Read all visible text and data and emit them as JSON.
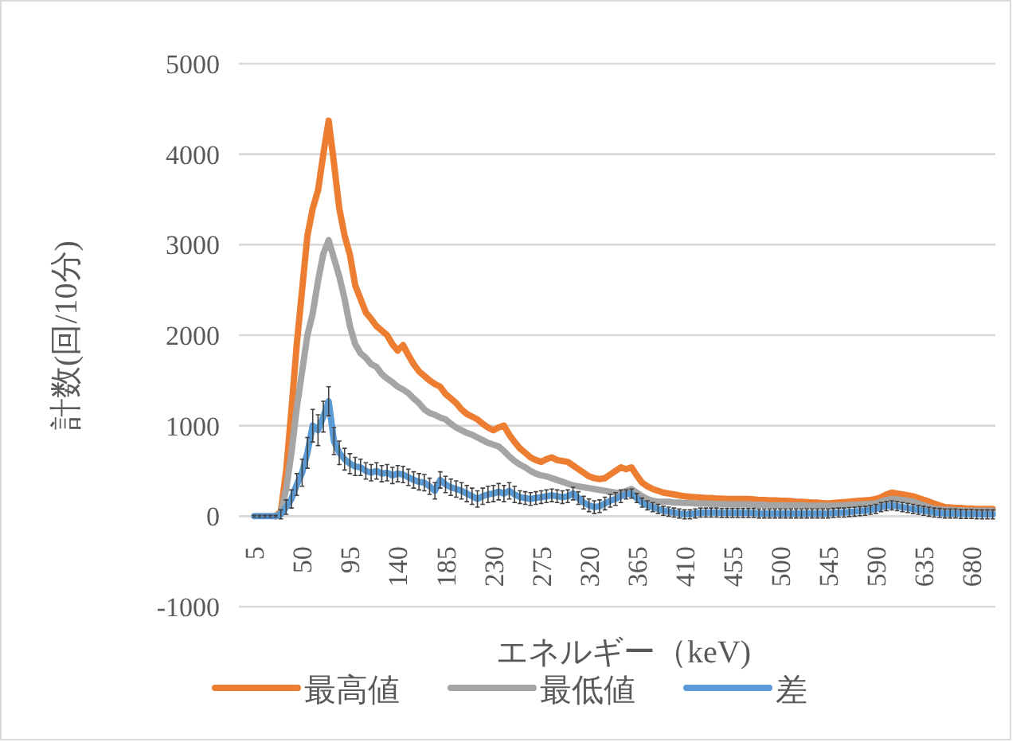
{
  "chart_data": {
    "type": "line",
    "xlabel": "エネルギー（keV)",
    "ylabel": "計数(回/10分)",
    "categories": [
      "5",
      null,
      null,
      null,
      null,
      null,
      null,
      null,
      null,
      "50",
      null,
      null,
      null,
      null,
      null,
      null,
      null,
      null,
      "95",
      null,
      null,
      null,
      null,
      null,
      null,
      null,
      null,
      "140",
      null,
      null,
      null,
      null,
      null,
      null,
      null,
      null,
      "185",
      null,
      null,
      null,
      null,
      null,
      null,
      null,
      null,
      "230",
      null,
      null,
      null,
      null,
      null,
      null,
      null,
      null,
      "275",
      null,
      null,
      null,
      null,
      null,
      null,
      null,
      null,
      "320",
      null,
      null,
      null,
      null,
      null,
      null,
      null,
      null,
      "365",
      null,
      null,
      null,
      null,
      null,
      null,
      null,
      null,
      "410",
      null,
      null,
      null,
      null,
      null,
      null,
      null,
      null,
      "455",
      null,
      null,
      null,
      null,
      null,
      null,
      null,
      null,
      "500",
      null,
      null,
      null,
      null,
      null,
      null,
      null,
      null,
      "545",
      null,
      null,
      null,
      null,
      null,
      null,
      null,
      null,
      "590",
      null,
      null,
      null,
      null,
      null,
      null,
      null,
      null,
      "635",
      null,
      null,
      null,
      null,
      null,
      null,
      null,
      null,
      "680",
      null,
      null,
      null,
      null
    ],
    "ylim": [
      -1000,
      5000
    ],
    "yticks": [
      -1000,
      0,
      1000,
      2000,
      3000,
      4000,
      5000
    ],
    "grid": "y",
    "legend": "bottom",
    "line_style": "solid",
    "series": [
      {
        "name": "最高値",
        "color": "#ed7d31",
        "values": [
          null,
          null,
          null,
          null,
          0,
          50,
          500,
          1180,
          1900,
          2500,
          3100,
          3400,
          3600,
          4000,
          4370,
          3900,
          3400,
          3100,
          2890,
          2550,
          2400,
          2250,
          2180,
          2100,
          2050,
          2000,
          1900,
          1830,
          1890,
          1780,
          1680,
          1600,
          1550,
          1500,
          1460,
          1430,
          1350,
          1300,
          1250,
          1180,
          1130,
          1100,
          1070,
          1020,
          980,
          950,
          980,
          1000,
          900,
          820,
          750,
          700,
          650,
          620,
          600,
          630,
          650,
          620,
          610,
          600,
          560,
          520,
          480,
          440,
          420,
          410,
          420,
          460,
          500,
          540,
          520,
          540,
          450,
          370,
          330,
          300,
          280,
          260,
          250,
          240,
          230,
          220,
          215,
          210,
          205,
          200,
          200,
          195,
          195,
          190,
          190,
          190,
          190,
          190,
          185,
          180,
          180,
          175,
          175,
          170,
          170,
          165,
          160,
          160,
          155,
          150,
          150,
          145,
          140,
          145,
          150,
          155,
          160,
          165,
          170,
          175,
          180,
          190,
          210,
          240,
          260,
          250,
          240,
          230,
          220,
          200,
          180,
          160,
          140,
          120,
          100,
          95,
          90,
          90,
          85,
          85,
          80,
          80,
          80,
          80
        ]
      },
      {
        "name": "最低値",
        "color": "#a5a5a5",
        "values": [
          null,
          null,
          null,
          null,
          0,
          30,
          300,
          700,
          1200,
          1600,
          2000,
          2240,
          2600,
          2900,
          3050,
          2850,
          2650,
          2400,
          2100,
          1900,
          1800,
          1750,
          1680,
          1650,
          1570,
          1520,
          1480,
          1430,
          1400,
          1360,
          1300,
          1250,
          1180,
          1140,
          1120,
          1090,
          1070,
          1020,
          980,
          950,
          920,
          900,
          870,
          840,
          810,
          790,
          770,
          720,
          660,
          610,
          570,
          540,
          500,
          470,
          450,
          440,
          420,
          400,
          380,
          360,
          340,
          330,
          320,
          310,
          300,
          290,
          280,
          270,
          260,
          250,
          280,
          300,
          260,
          220,
          190,
          170,
          160,
          160,
          160,
          150,
          150,
          145,
          145,
          140,
          140,
          140,
          135,
          135,
          135,
          130,
          130,
          130,
          130,
          130,
          125,
          125,
          125,
          120,
          120,
          120,
          120,
          120,
          120,
          120,
          115,
          115,
          115,
          115,
          115,
          115,
          120,
          120,
          125,
          125,
          130,
          130,
          135,
          140,
          160,
          180,
          190,
          185,
          180,
          170,
          160,
          140,
          120,
          100,
          80,
          75,
          70,
          70,
          65,
          65,
          60,
          60,
          60,
          60,
          60,
          60
        ]
      },
      {
        "name": "差",
        "color": "#5b9bd5",
        "values": [
          0,
          0,
          0,
          0,
          0,
          20,
          100,
          190,
          350,
          480,
          700,
          1000,
          950,
          1100,
          1270,
          830,
          700,
          630,
          580,
          550,
          540,
          500,
          480,
          500,
          470,
          480,
          450,
          470,
          460,
          430,
          400,
          380,
          370,
          330,
          280,
          400,
          350,
          320,
          300,
          280,
          250,
          220,
          190,
          220,
          240,
          250,
          270,
          250,
          280,
          240,
          210,
          200,
          190,
          200,
          210,
          220,
          230,
          220,
          210,
          220,
          250,
          200,
          150,
          120,
          100,
          110,
          140,
          170,
          190,
          220,
          240,
          250,
          200,
          150,
          120,
          100,
          80,
          60,
          50,
          40,
          30,
          20,
          20,
          30,
          40,
          40,
          40,
          40,
          35,
          35,
          35,
          35,
          35,
          35,
          35,
          30,
          30,
          30,
          30,
          30,
          30,
          30,
          30,
          30,
          30,
          30,
          30,
          30,
          30,
          35,
          40,
          40,
          45,
          50,
          55,
          60,
          70,
          80,
          100,
          110,
          120,
          110,
          100,
          90,
          80,
          70,
          60,
          50,
          40,
          35,
          30,
          30,
          30,
          25,
          25,
          25,
          20,
          20,
          20,
          20
        ],
        "errors": [
          10,
          10,
          10,
          10,
          10,
          50,
          80,
          100,
          120,
          150,
          170,
          180,
          170,
          170,
          160,
          150,
          130,
          120,
          110,
          100,
          90,
          90,
          90,
          90,
          90,
          90,
          90,
          90,
          90,
          90,
          90,
          90,
          90,
          90,
          90,
          90,
          90,
          90,
          90,
          90,
          90,
          90,
          90,
          90,
          90,
          90,
          90,
          90,
          90,
          90,
          70,
          70,
          70,
          70,
          70,
          70,
          70,
          70,
          70,
          70,
          70,
          70,
          70,
          70,
          70,
          70,
          70,
          70,
          70,
          70,
          50,
          50,
          50,
          50,
          50,
          50,
          50,
          50,
          50,
          50,
          50,
          50,
          50,
          50,
          50,
          50,
          50,
          50,
          50,
          50,
          50,
          50,
          50,
          50,
          50,
          50,
          50,
          50,
          50,
          50,
          50,
          50,
          50,
          50,
          50,
          50,
          50,
          50,
          50,
          50,
          50,
          50,
          50,
          50,
          50,
          50,
          50,
          50,
          50,
          50,
          50,
          50,
          50,
          50,
          50,
          50,
          50,
          50,
          50,
          50,
          50,
          50,
          50,
          50,
          50,
          50,
          50,
          50,
          50,
          50
        ]
      }
    ]
  }
}
